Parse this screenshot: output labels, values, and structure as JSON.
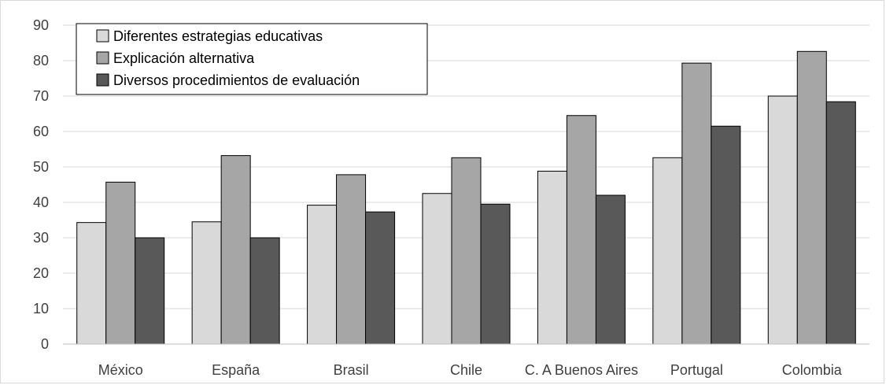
{
  "chart_data": {
    "type": "bar",
    "title": "",
    "xlabel": "",
    "ylabel": "",
    "categories": [
      "México",
      "España",
      "Brasil",
      "Chile",
      "C. A Buenos Aires",
      "Portugal",
      "Colombia"
    ],
    "series": [
      {
        "name": "Diferentes estrategias educativas",
        "color": "#d9d9d9",
        "values": [
          34.3,
          34.5,
          39.2,
          42.5,
          48.8,
          52.6,
          70.0
        ]
      },
      {
        "name": "Explicación alternativa",
        "color": "#a6a6a6",
        "values": [
          45.7,
          53.2,
          47.8,
          52.6,
          64.5,
          79.3,
          82.6
        ]
      },
      {
        "name": "Diversos procedimientos de evaluación",
        "color": "#595959",
        "values": [
          30.0,
          30.0,
          37.3,
          39.5,
          42.0,
          61.5,
          68.4
        ]
      }
    ],
    "ylim": [
      0,
      90
    ],
    "yticks": [
      0,
      10,
      20,
      30,
      40,
      50,
      60,
      70,
      80,
      90
    ],
    "grid": true,
    "legend_position": "top-left"
  }
}
